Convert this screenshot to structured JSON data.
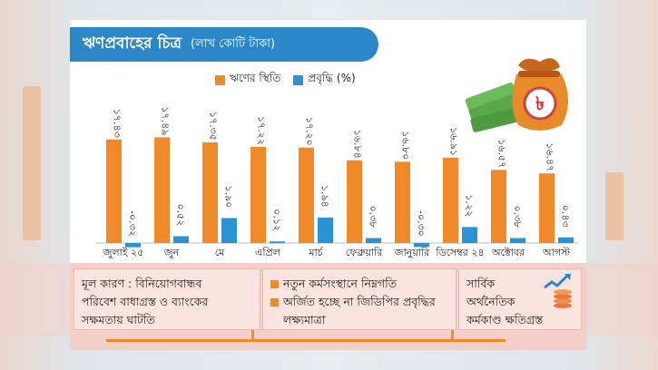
{
  "title": "ঋণপ্রবাহের চিত্র",
  "unit": "(লাখ কোটি টাকা)",
  "legend": {
    "stock": "ঋণের স্থিতি",
    "growth": "প্রবৃদ্ধি (%)"
  },
  "colors": {
    "stock": "#f0892a",
    "growth": "#2c93d3",
    "header": "#2c87c8",
    "accent": "#f0892a"
  },
  "chart_data": {
    "type": "bar",
    "title": "ঋণপ্রবাহের চিত্র",
    "subtitle": "(লাখ কোটি টাকা)",
    "categories": [
      "জুলাই ২৫",
      "জুন",
      "মে",
      "এপ্রিল",
      "মার্চ",
      "ফেব্রুয়ারি",
      "জানুয়ারি",
      "ডিসেম্বর ২৪",
      "অক্টোবর",
      "আগস্ট"
    ],
    "series": [
      {
        "name": "ঋণের স্থিতি",
        "values": [
          17.43,
          17.49,
          17.35,
          17.22,
          17.2,
          16.84,
          16.8,
          16.91,
          16.57,
          16.47
        ]
      },
      {
        "name": "প্রবৃদ্ধি (%)",
        "values": [
          -0.32,
          0.52,
          1.9,
          0.12,
          1.94,
          0.38,
          -0.3,
          1.22,
          0.38,
          0.43
        ]
      }
    ],
    "data_labels": {
      "stock": [
        "১৭.৪৩",
        "১৭.৪৯",
        "১৭.৩৫",
        "১৭.২২",
        "১৭.২০",
        "১৬.৮৪",
        "১৬.৮০",
        "১৬.৯১",
        "১৬.৫৭",
        "১৬.৪৭"
      ],
      "growth": [
        "-০.৩২",
        "০.৫২",
        "১.৯০",
        "০.১২",
        "১.৯৪",
        "০.৩৮",
        "-০.৩০",
        "১.২২",
        "০.৩৮",
        "০.৪৩"
      ]
    },
    "legend_position": "top-center",
    "grid": false
  },
  "bottom": {
    "box1": [
      "মূল কারণ : বিনিয়োগবান্ধব",
      "পরিবেশ বাধাগ্রস্ত ও ব্যাংকের",
      "সক্ষমতায় ঘাটতি"
    ],
    "box2_items": [
      "নতুন কর্মসংস্থানে নিম্নগতি",
      "অর্জিত হচ্ছে না জিডিপির প্রবৃদ্ধির লক্ষ্যমাত্রা"
    ],
    "box3": [
      "সার্বিক",
      "অর্থনৈতিক",
      "কর্মকাণ্ড ক্ষতিগ্রস্ত"
    ]
  }
}
